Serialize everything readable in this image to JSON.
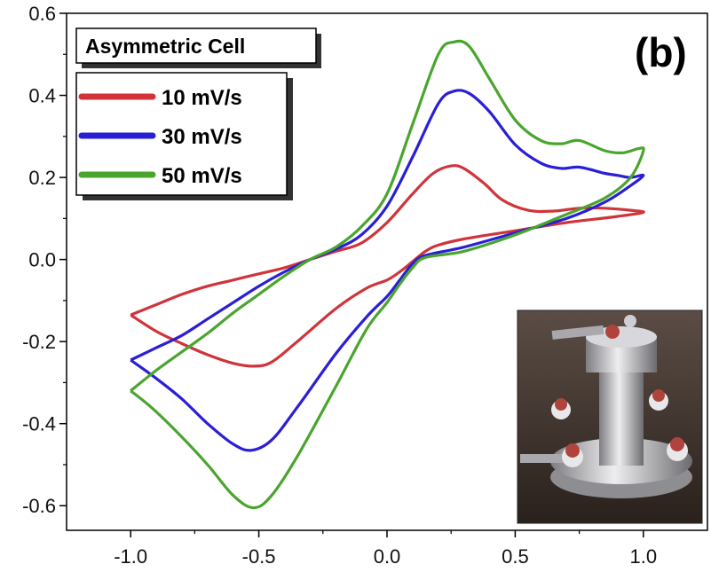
{
  "chart_data": {
    "type": "line",
    "title": "Asymmetric Cell",
    "panel_label": "(b)",
    "xlabel": "",
    "ylabel": "",
    "xlim": [
      -1.25,
      1.25
    ],
    "ylim": [
      -0.66,
      0.6
    ],
    "x_ticks": [
      -1.0,
      -0.5,
      0.0,
      0.5,
      1.0
    ],
    "x_tick_labels": [
      "-1.0",
      "-0.5",
      "0.0",
      "0.5",
      "1.0"
    ],
    "y_ticks": [
      0.6,
      0.4,
      0.2,
      0.0,
      -0.2,
      -0.4,
      -0.6
    ],
    "y_tick_labels": [
      "0.6",
      "0.4",
      "0.2",
      "0.0",
      "-0.2",
      "-0.4",
      "-0.6"
    ],
    "grid": false,
    "legend_position": "top-left",
    "series": [
      {
        "name": "10 mV/s",
        "color": "#d0343a",
        "points": [
          [
            -1.0,
            -0.135
          ],
          [
            -0.9,
            -0.175
          ],
          [
            -0.8,
            -0.205
          ],
          [
            -0.7,
            -0.232
          ],
          [
            -0.6,
            -0.253
          ],
          [
            -0.52,
            -0.26
          ],
          [
            -0.45,
            -0.25
          ],
          [
            -0.35,
            -0.2
          ],
          [
            -0.2,
            -0.12
          ],
          [
            -0.08,
            -0.07
          ],
          [
            0.0,
            -0.05
          ],
          [
            0.05,
            -0.03
          ],
          [
            0.1,
            -0.005
          ],
          [
            0.15,
            0.02
          ],
          [
            0.2,
            0.035
          ],
          [
            0.3,
            0.05
          ],
          [
            0.5,
            0.07
          ],
          [
            0.7,
            0.09
          ],
          [
            0.9,
            0.105
          ],
          [
            1.0,
            0.115
          ],
          [
            0.95,
            0.12
          ],
          [
            0.85,
            0.125
          ],
          [
            0.75,
            0.125
          ],
          [
            0.65,
            0.118
          ],
          [
            0.55,
            0.12
          ],
          [
            0.45,
            0.145
          ],
          [
            0.38,
            0.185
          ],
          [
            0.3,
            0.222
          ],
          [
            0.25,
            0.228
          ],
          [
            0.18,
            0.21
          ],
          [
            0.1,
            0.16
          ],
          [
            0.0,
            0.09
          ],
          [
            -0.1,
            0.04
          ],
          [
            -0.2,
            0.02
          ],
          [
            -0.3,
            0.0
          ],
          [
            -0.4,
            -0.02
          ],
          [
            -0.5,
            -0.035
          ],
          [
            -0.6,
            -0.05
          ],
          [
            -0.7,
            -0.065
          ],
          [
            -0.8,
            -0.085
          ],
          [
            -0.9,
            -0.11
          ],
          [
            -1.0,
            -0.135
          ]
        ]
      },
      {
        "name": "30 mV/s",
        "color": "#2a1fd6",
        "points": [
          [
            -1.0,
            -0.245
          ],
          [
            -0.9,
            -0.29
          ],
          [
            -0.8,
            -0.34
          ],
          [
            -0.7,
            -0.4
          ],
          [
            -0.6,
            -0.45
          ],
          [
            -0.53,
            -0.465
          ],
          [
            -0.45,
            -0.44
          ],
          [
            -0.35,
            -0.36
          ],
          [
            -0.2,
            -0.23
          ],
          [
            -0.08,
            -0.14
          ],
          [
            0.0,
            -0.09
          ],
          [
            0.05,
            -0.05
          ],
          [
            0.1,
            -0.01
          ],
          [
            0.15,
            0.01
          ],
          [
            0.3,
            0.03
          ],
          [
            0.5,
            0.065
          ],
          [
            0.7,
            0.1
          ],
          [
            0.85,
            0.14
          ],
          [
            0.95,
            0.18
          ],
          [
            1.0,
            0.205
          ],
          [
            0.95,
            0.2
          ],
          [
            0.9,
            0.205
          ],
          [
            0.85,
            0.21
          ],
          [
            0.75,
            0.225
          ],
          [
            0.68,
            0.222
          ],
          [
            0.6,
            0.235
          ],
          [
            0.5,
            0.28
          ],
          [
            0.4,
            0.36
          ],
          [
            0.32,
            0.405
          ],
          [
            0.26,
            0.41
          ],
          [
            0.2,
            0.38
          ],
          [
            0.1,
            0.25
          ],
          [
            0.0,
            0.13
          ],
          [
            -0.1,
            0.06
          ],
          [
            -0.2,
            0.025
          ],
          [
            -0.3,
            0.0
          ],
          [
            -0.4,
            -0.03
          ],
          [
            -0.5,
            -0.065
          ],
          [
            -0.6,
            -0.105
          ],
          [
            -0.7,
            -0.145
          ],
          [
            -0.8,
            -0.185
          ],
          [
            -0.9,
            -0.215
          ],
          [
            -1.0,
            -0.245
          ]
        ]
      },
      {
        "name": "50 mV/s",
        "color": "#4aa52e",
        "points": [
          [
            -1.0,
            -0.32
          ],
          [
            -0.92,
            -0.36
          ],
          [
            -0.82,
            -0.42
          ],
          [
            -0.7,
            -0.5
          ],
          [
            -0.6,
            -0.575
          ],
          [
            -0.52,
            -0.605
          ],
          [
            -0.45,
            -0.575
          ],
          [
            -0.35,
            -0.48
          ],
          [
            -0.2,
            -0.31
          ],
          [
            -0.08,
            -0.17
          ],
          [
            0.0,
            -0.105
          ],
          [
            0.05,
            -0.06
          ],
          [
            0.1,
            -0.02
          ],
          [
            0.15,
            0.005
          ],
          [
            0.3,
            0.02
          ],
          [
            0.5,
            0.06
          ],
          [
            0.7,
            0.11
          ],
          [
            0.85,
            0.15
          ],
          [
            0.95,
            0.2
          ],
          [
            1.0,
            0.265
          ],
          [
            0.98,
            0.27
          ],
          [
            0.92,
            0.26
          ],
          [
            0.85,
            0.265
          ],
          [
            0.75,
            0.29
          ],
          [
            0.68,
            0.282
          ],
          [
            0.6,
            0.29
          ],
          [
            0.5,
            0.34
          ],
          [
            0.4,
            0.44
          ],
          [
            0.32,
            0.52
          ],
          [
            0.26,
            0.53
          ],
          [
            0.2,
            0.5
          ],
          [
            0.1,
            0.33
          ],
          [
            0.0,
            0.16
          ],
          [
            -0.1,
            0.08
          ],
          [
            -0.2,
            0.03
          ],
          [
            -0.3,
            0.0
          ],
          [
            -0.4,
            -0.04
          ],
          [
            -0.5,
            -0.085
          ],
          [
            -0.6,
            -0.13
          ],
          [
            -0.7,
            -0.18
          ],
          [
            -0.8,
            -0.225
          ],
          [
            -0.9,
            -0.27
          ],
          [
            -1.0,
            -0.32
          ]
        ]
      }
    ]
  },
  "colors": {
    "photo_background": "#3a2e28",
    "photo_metal": "#c8c8cc",
    "photo_seal": "#b0443c"
  },
  "inset_photo_icon": "cell-photo-icon"
}
